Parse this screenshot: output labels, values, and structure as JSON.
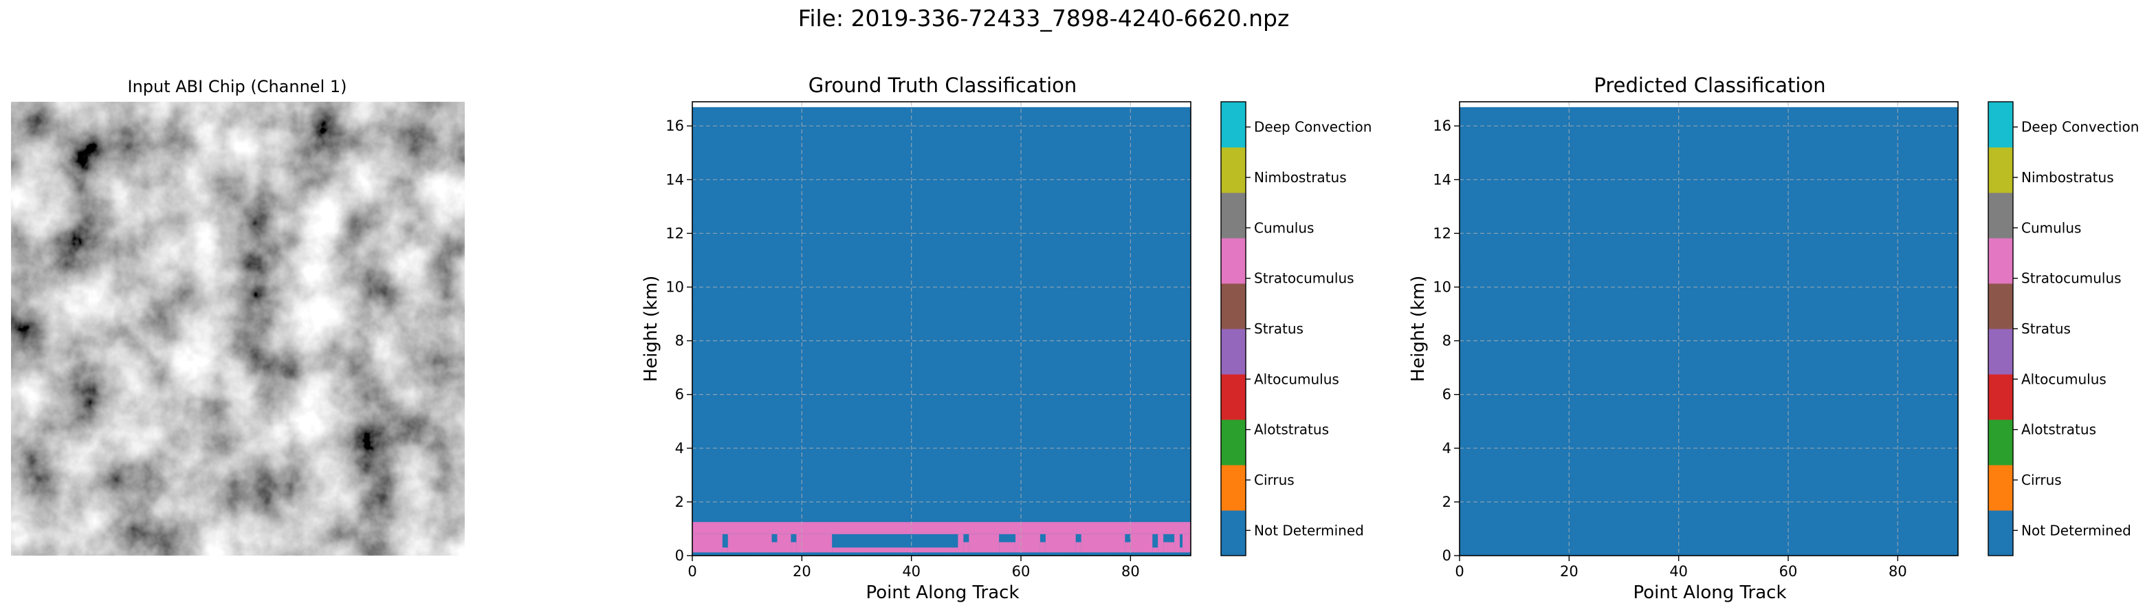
{
  "figure_title": "File: 2019-336-72433_7898-4240-6620.npz",
  "image_panel": {
    "title": "Input ABI Chip (Channel 1)",
    "description_icon": "grayscale-satellite-image"
  },
  "colors": {
    "grid": "#b0b0b0",
    "classes": [
      "#1f77b4",
      "#ff7f0e",
      "#2ca02c",
      "#d62728",
      "#9467bd",
      "#8c564b",
      "#e377c2",
      "#7f7f7f",
      "#bcbd22",
      "#17becf"
    ]
  },
  "chart_data": [
    {
      "type": "heatmap",
      "title": "Ground Truth Classification",
      "xlabel": "Point Along Track",
      "ylabel": "Height (km)",
      "xlim": [
        0,
        91
      ],
      "ylim": [
        0,
        16.9
      ],
      "xticks": [
        "0",
        "20",
        "40",
        "60",
        "80"
      ],
      "yticks": [
        "0",
        "2",
        "4",
        "6",
        "8",
        "10",
        "12",
        "14",
        "16"
      ],
      "grid": true,
      "data_top_km": 16.7,
      "background_class": 0,
      "layers": [
        {
          "class": 6,
          "bottom_km": 0.8,
          "top_km": 1.25,
          "x_start": 0,
          "x_end": 91
        },
        {
          "class": 6,
          "bottom_km": 0.12,
          "top_km": 0.8,
          "x_ranges": [
            [
              0,
              5.5
            ],
            [
              6.5,
              14.5
            ],
            [
              15.5,
              18
            ],
            [
              19,
              25.5
            ],
            [
              48.5,
              49.5
            ],
            [
              50.5,
              56
            ],
            [
              59,
              63.5
            ],
            [
              64.5,
              70
            ],
            [
              71,
              79
            ],
            [
              80,
              84
            ],
            [
              85,
              86
            ],
            [
              88,
              89
            ],
            [
              89.5,
              91
            ]
          ]
        },
        {
          "class": 6,
          "bottom_km": 0.12,
          "top_km": 0.5,
          "x_ranges": [
            [
              14.5,
              15.5
            ],
            [
              18,
              19
            ],
            [
              49.5,
              50.5
            ],
            [
              56,
              59
            ],
            [
              63.5,
              64.5
            ],
            [
              70,
              71
            ],
            [
              79,
              80
            ],
            [
              86,
              88
            ]
          ]
        },
        {
          "class": 6,
          "bottom_km": 0.12,
          "top_km": 0.3,
          "x_ranges": [
            [
              5.5,
              6.5
            ],
            [
              25.5,
              48.5
            ],
            [
              84,
              85
            ],
            [
              89,
              89.5
            ]
          ]
        }
      ],
      "colorbar": {
        "labels": [
          "Not Determined",
          "Cirrus",
          "Alotstratus",
          "Altocumulus",
          "Stratus",
          "Stratocumulus",
          "Cumulus",
          "Nimbostratus",
          "Deep Convection"
        ],
        "segments": 10
      }
    },
    {
      "type": "heatmap",
      "title": "Predicted Classification",
      "xlabel": "Point Along Track",
      "ylabel": "Height (km)",
      "xlim": [
        0,
        91
      ],
      "ylim": [
        0,
        16.9
      ],
      "xticks": [
        "0",
        "20",
        "40",
        "60",
        "80"
      ],
      "yticks": [
        "0",
        "2",
        "4",
        "6",
        "8",
        "10",
        "12",
        "14",
        "16"
      ],
      "grid": true,
      "data_top_km": 16.7,
      "background_class": 0,
      "layers": [],
      "colorbar": {
        "labels": [
          "Not Determined",
          "Cirrus",
          "Alotstratus",
          "Altocumulus",
          "Stratus",
          "Stratocumulus",
          "Cumulus",
          "Nimbostratus",
          "Deep Convection"
        ],
        "segments": 10
      }
    }
  ]
}
